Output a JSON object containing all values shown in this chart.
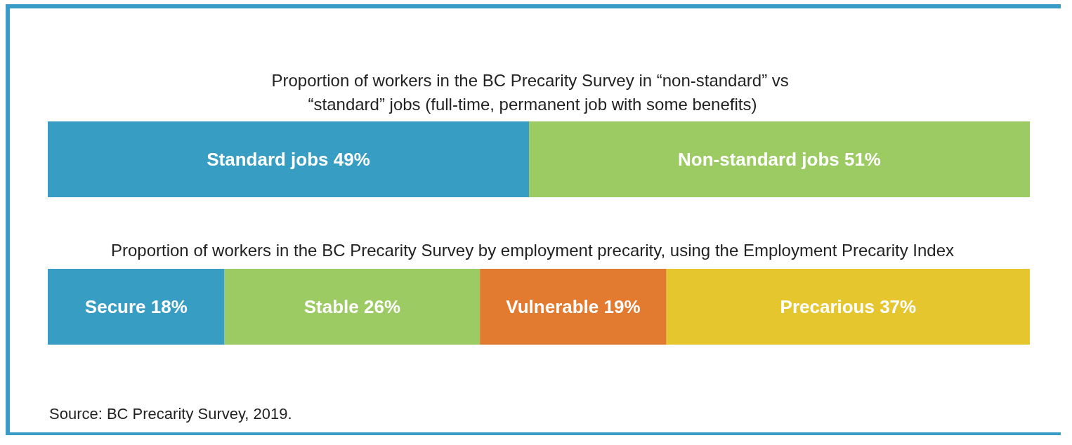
{
  "chart_data": [
    {
      "type": "bar",
      "orientation": "horizontal",
      "stacked": true,
      "title": "Proportion of workers in the BC Precarity Survey in “non-standard” vs “standard” jobs (full-time, permanent job with some benefits)",
      "categories": [
        null
      ],
      "tick_labels": false,
      "grid": false,
      "legend": false,
      "series": [
        {
          "name": "Standard jobs",
          "color": "#379dc2",
          "values": [
            49
          ],
          "value_labels": [
            "49%"
          ]
        },
        {
          "name": "Non-standard jobs",
          "color": "#9ccb63",
          "values": [
            51
          ],
          "value_labels": [
            "51%"
          ]
        }
      ]
    },
    {
      "type": "bar",
      "orientation": "horizontal",
      "stacked": true,
      "title": "Proportion of workers in the BC Precarity Survey by employment precarity, using the Employment Precarity Index",
      "categories": [
        null
      ],
      "tick_labels": false,
      "grid": false,
      "legend": false,
      "annotations": [
        "Source: BC Precarity Survey, 2019."
      ],
      "series": [
        {
          "name": "Secure",
          "color": "#379dc2",
          "values": [
            18
          ],
          "value_labels": [
            "18%"
          ]
        },
        {
          "name": "Stable",
          "color": "#9ccb63",
          "values": [
            26
          ],
          "value_labels": [
            "26%"
          ]
        },
        {
          "name": "Vulnerable",
          "color": "#e27a2f",
          "values": [
            19
          ],
          "value_labels": [
            "19%"
          ]
        },
        {
          "name": "Precarious",
          "color": "#e6c62f",
          "values": [
            37
          ],
          "value_labels": [
            "37%"
          ]
        }
      ]
    }
  ]
}
